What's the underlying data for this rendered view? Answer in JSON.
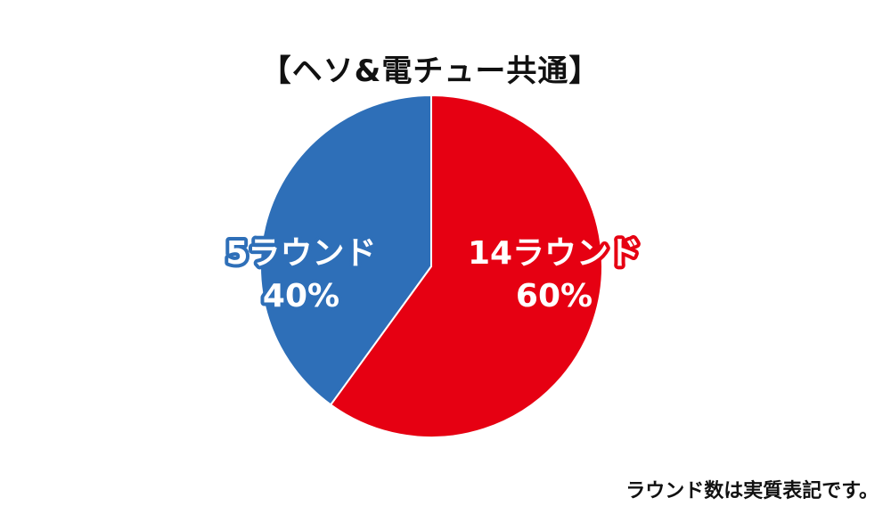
{
  "chart_data": {
    "type": "pie",
    "title": "【ヘソ&電チュー共通】",
    "slices": [
      {
        "label": "14ラウンド",
        "percent_label": "60%",
        "value": 60,
        "color": "#e60012"
      },
      {
        "label": "5ラウンド",
        "percent_label": "40%",
        "value": 40,
        "color": "#2e6fb8"
      }
    ]
  },
  "footnote": "ラウンド数は実質表記です。"
}
